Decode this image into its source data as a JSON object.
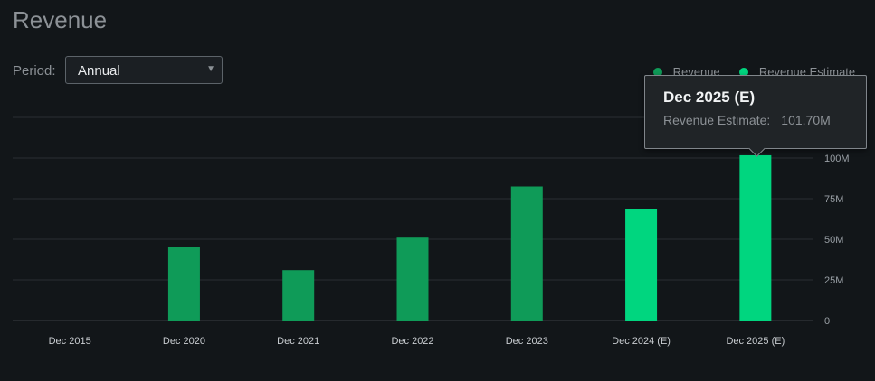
{
  "header": {
    "title": "Revenue"
  },
  "controls": {
    "period_label": "Period:",
    "period_value": "Annual"
  },
  "legend": [
    {
      "label": "Revenue",
      "color": "#0f9b58"
    },
    {
      "label": "Revenue Estimate",
      "color": "#00d67f"
    }
  ],
  "tooltip": {
    "title": "Dec 2025 (E)",
    "label": "Revenue Estimate:",
    "value": "101.70M"
  },
  "chart_data": {
    "type": "bar",
    "categories": [
      "Dec 2015",
      "Dec 2020",
      "Dec 2021",
      "Dec 2022",
      "Dec 2023",
      "Dec 2024 (E)",
      "Dec 2025 (E)"
    ],
    "series": [
      {
        "name": "Revenue",
        "color": "#0f9b58",
        "values": [
          0,
          45,
          31,
          51,
          82.5,
          null,
          null
        ]
      },
      {
        "name": "Revenue Estimate",
        "color": "#00d67f",
        "values": [
          null,
          null,
          null,
          null,
          null,
          68.5,
          101.7
        ]
      }
    ],
    "yticks": [
      0,
      25,
      50,
      75,
      100
    ],
    "ytick_labels": [
      "0",
      "25M",
      "50M",
      "75M",
      "100M"
    ],
    "ylim": [
      0,
      125
    ],
    "grid": true,
    "legend_position": "top-right"
  }
}
